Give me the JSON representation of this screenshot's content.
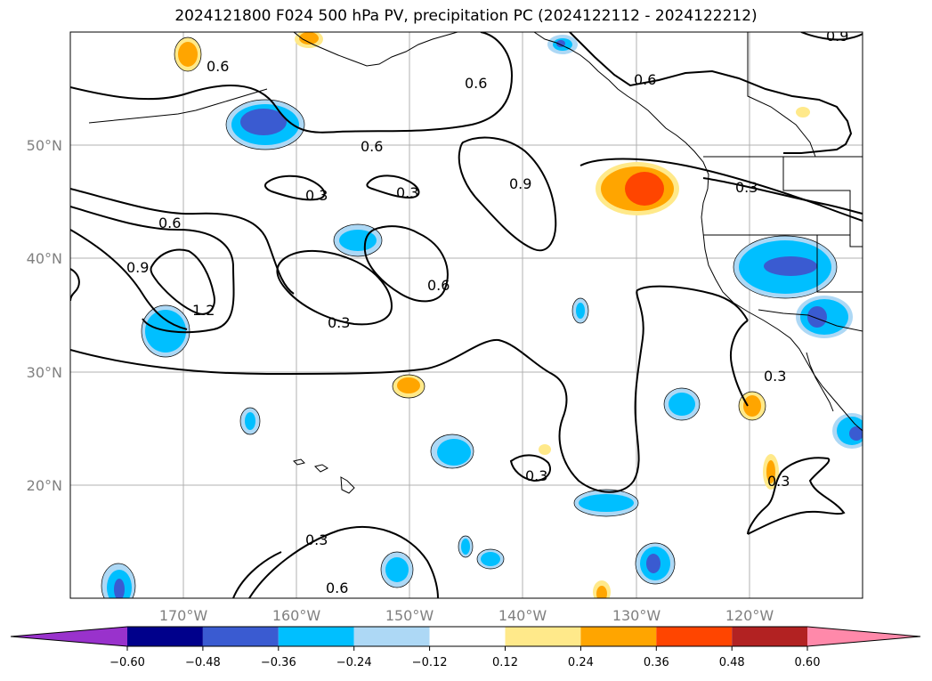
{
  "title": "2024121800 F024 500 hPa PV, precipitation PC (2024122112 - 2024122212)",
  "lat_labels": [
    "50°N",
    "40°N",
    "30°N",
    "20°N"
  ],
  "lon_labels": [
    "170°W",
    "160°W",
    "150°W",
    "140°W",
    "130°W",
    "120°W"
  ],
  "contour_labels": [
    "0.6",
    "0.6",
    "0.6",
    "0.6",
    "0.9",
    "0.3",
    "0.3",
    "0.6",
    "0.9",
    "1.2",
    "0.3",
    "0.6",
    "0.3",
    "0.3",
    "0.3",
    "0.3",
    "0.6",
    "0.3",
    "0.9"
  ],
  "colorbar": {
    "ticks": [
      "−0.60",
      "−0.48",
      "−0.36",
      "−0.24",
      "−0.12",
      "0.12",
      "0.24",
      "0.36",
      "0.48",
      "0.60"
    ],
    "colors": [
      "#9932cc",
      "#00008b",
      "#3a5bd1",
      "#00bfff",
      "#add8f5",
      "#ffffff",
      "#ffe98a",
      "#ffa500",
      "#ff4500",
      "#b22222",
      "#ff89aa"
    ]
  },
  "colors": {
    "neg_strong": "#3a5bd1",
    "neg_mid": "#00bfff",
    "neg_weak": "#add8f5",
    "pos_weak": "#ffe98a",
    "pos_mid": "#ffa500",
    "pos_strong": "#ff4500"
  }
}
